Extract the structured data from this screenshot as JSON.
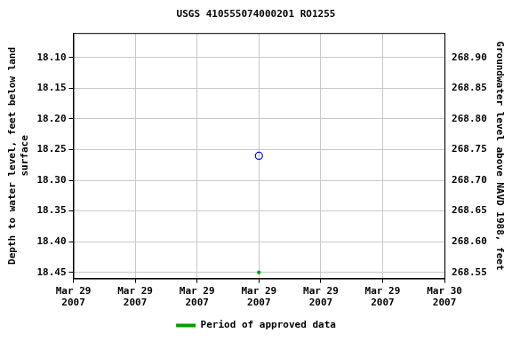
{
  "chart_data": {
    "type": "scatter",
    "title": "USGS 410555074000201 RO1255",
    "ylabel": "Depth to water level, feet below land\nsurface",
    "y2label": "Groundwater level above NAVD 1988, feet",
    "x": [
      12
    ],
    "xlim": [
      0,
      24
    ],
    "xticks": [
      {
        "value": 0,
        "label": "Mar 29\n2007"
      },
      {
        "value": 4,
        "label": "Mar 29\n2007"
      },
      {
        "value": 8,
        "label": "Mar 29\n2007"
      },
      {
        "value": 12,
        "label": "Mar 29\n2007"
      },
      {
        "value": 16,
        "label": "Mar 29\n2007"
      },
      {
        "value": 20,
        "label": "Mar 29\n2007"
      },
      {
        "value": 24,
        "label": "Mar 30\n2007"
      }
    ],
    "series": [
      {
        "values": [
          18.26
        ],
        "color": "#0000ff",
        "marker": "circle_open"
      },
      {
        "name": "Period of approved data",
        "values": [
          18.45
        ],
        "color": "#00a000",
        "marker": "square"
      }
    ],
    "ylim": [
      18.46,
      18.06
    ],
    "yticks": [
      {
        "value": 18.1,
        "label": "18.10"
      },
      18.15,
      {
        "value": 18.2,
        "label": "18.20"
      },
      18.25,
      {
        "value": 18.3,
        "label": "18.30"
      },
      18.35,
      {
        "value": 18.4,
        "label": "18.40"
      },
      18.45
    ],
    "y2lim": [
      268.54,
      268.94
    ],
    "y2ticks": [
      {
        "value": 268.9,
        "label": "268.90"
      },
      268.85,
      {
        "value": 268.8,
        "label": "268.80"
      },
      268.75,
      {
        "value": 268.7,
        "label": "268.70"
      },
      268.65,
      {
        "value": 268.6,
        "label": "268.60"
      },
      268.55
    ],
    "grid": true,
    "legend": "bottom"
  }
}
